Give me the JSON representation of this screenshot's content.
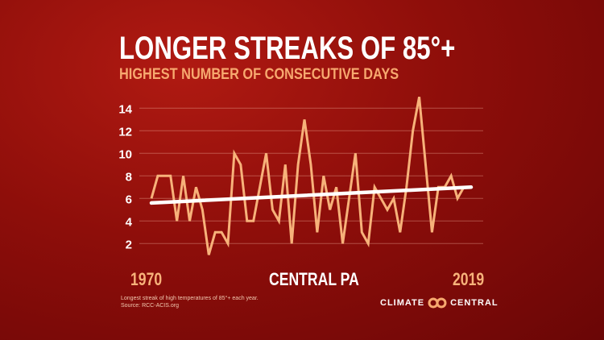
{
  "chart_data": {
    "type": "line",
    "title": "LONGER STREAKS OF 85°+",
    "subtitle": "HIGHEST NUMBER OF CONSECUTIVE DAYS",
    "region": "CENTRAL PA",
    "x_start_label": "1970",
    "x_end_label": "2019",
    "x": [
      1970,
      1971,
      1972,
      1973,
      1974,
      1975,
      1976,
      1977,
      1978,
      1979,
      1980,
      1981,
      1982,
      1983,
      1984,
      1985,
      1986,
      1987,
      1988,
      1989,
      1990,
      1991,
      1992,
      1993,
      1994,
      1995,
      1996,
      1997,
      1998,
      1999,
      2000,
      2001,
      2002,
      2003,
      2004,
      2005,
      2006,
      2007,
      2008,
      2009,
      2010,
      2011,
      2012,
      2013,
      2014,
      2015,
      2016,
      2017,
      2018,
      2019
    ],
    "values": [
      6,
      8,
      8,
      8,
      4,
      8,
      4,
      7,
      5,
      1,
      3,
      3,
      2,
      10,
      9,
      4,
      4,
      7,
      10,
      5,
      4,
      9,
      2,
      9,
      13,
      9,
      3,
      8,
      5,
      7,
      2,
      6,
      10,
      3,
      2,
      7,
      6,
      5,
      6,
      3,
      7,
      12,
      15,
      9,
      3,
      7,
      7,
      8,
      6,
      7
    ],
    "trend": {
      "start": 5.6,
      "end": 7.0
    },
    "yticks": [
      2,
      4,
      6,
      8,
      10,
      12,
      14
    ],
    "ylim": [
      0,
      15
    ],
    "grid": true,
    "line_color": "#f7b27a",
    "trend_color": "#ffffff"
  },
  "footnote": {
    "line1": "Longest streak of high temperatures of 85°+  each year.",
    "line2": "Source: RCC-ACIS.org"
  },
  "logo": {
    "left": "CLIMATE",
    "right": "CENTRAL"
  }
}
